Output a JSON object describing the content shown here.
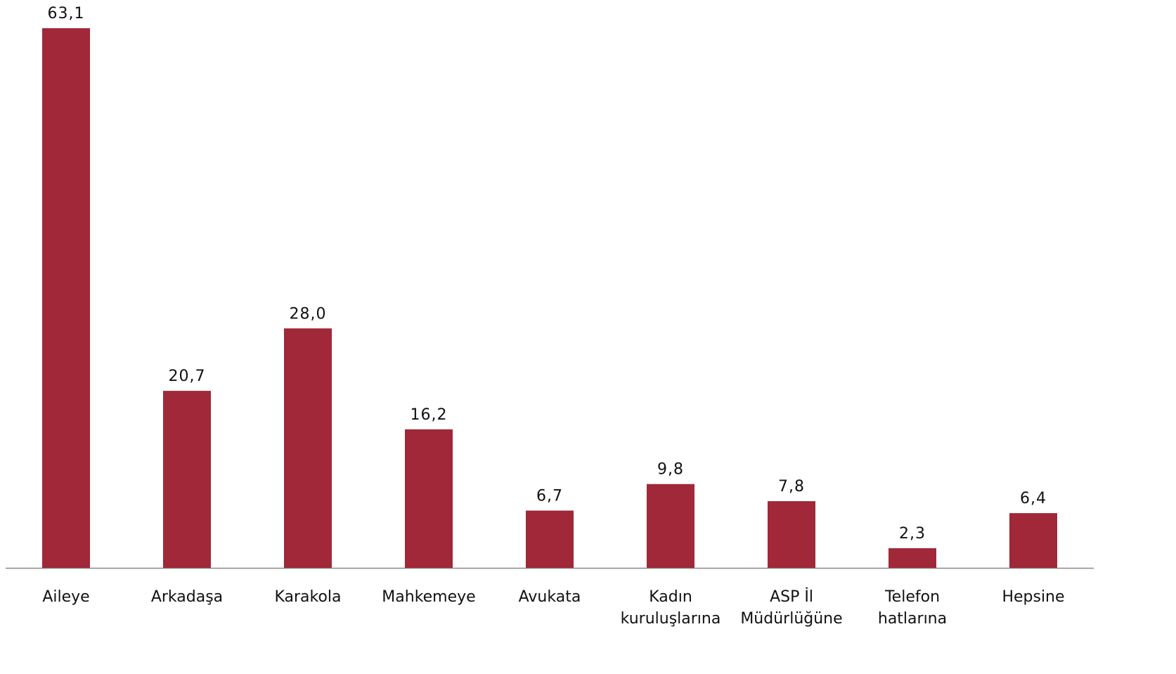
{
  "chart_data": {
    "type": "bar",
    "categories": [
      "Aileye",
      "Arkadaşa",
      "Karakola",
      "Mahkemeye",
      "Avukata",
      "Kadın kuruluşlarına",
      "ASP İl Müdürlüğüne",
      "Telefon hatlarına",
      "Hepsine"
    ],
    "values": [
      63.1,
      20.7,
      28.0,
      16.2,
      6.7,
      9.8,
      7.8,
      2.3,
      6.4
    ],
    "value_labels": [
      "63,1",
      "20,7",
      "28,0",
      "16,2",
      "6,7",
      "9,8",
      "7,8",
      "2,3",
      "6,4"
    ],
    "color": "#a02838",
    "ylim": [
      0,
      65
    ]
  }
}
